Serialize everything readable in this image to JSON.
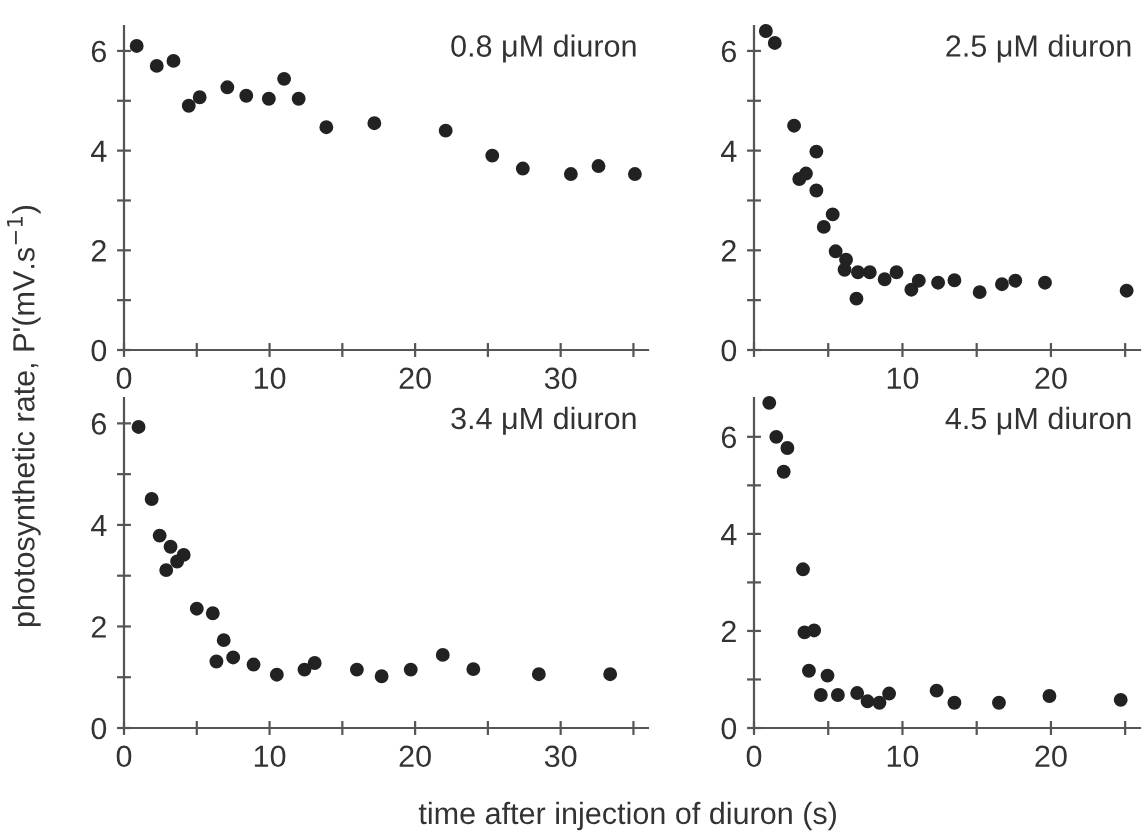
{
  "chart_data": [
    {
      "type": "scatter",
      "annotations": [
        "0.8 μM diuron"
      ],
      "ylabel": "photosynthetic rate, P'(mV.s$^{−1}$)",
      "marker": "circle",
      "grid": false,
      "x": [
        0.87,
        2.25,
        3.4,
        4.45,
        5.2,
        7.1,
        8.4,
        9.95,
        11.0,
        12.0,
        13.9,
        17.2,
        22.1,
        25.3,
        27.4,
        30.7,
        32.6,
        35.1
      ],
      "series": [
        {
          "color": "#222222",
          "values": [
            6.1,
            5.7,
            5.8,
            4.9,
            5.07,
            5.27,
            5.1,
            5.04,
            5.44,
            5.04,
            4.47,
            4.55,
            4.4,
            3.9,
            3.64,
            3.53,
            3.69,
            3.53
          ]
        }
      ],
      "xlim": [
        0,
        36
      ],
      "ylim": [
        0,
        6.5
      ],
      "xticks": [
        0,
        {
          "value": 5,
          "label": null
        },
        10,
        {
          "value": 15,
          "label": null
        },
        20,
        {
          "value": 25,
          "label": null
        },
        30,
        {
          "value": 35,
          "label": null
        }
      ],
      "yticks": [
        0,
        {
          "value": 1,
          "label": null
        },
        2,
        {
          "value": 3,
          "label": null
        },
        4,
        {
          "value": 5,
          "label": null
        },
        6
      ]
    },
    {
      "type": "scatter",
      "annotations": [
        "2.5 μM diuron"
      ],
      "marker": "circle",
      "grid": false,
      "x": [
        0.8,
        1.4,
        2.7,
        3.05,
        3.5,
        4.2,
        4.2,
        4.7,
        5.3,
        5.5,
        6.2,
        6.1,
        7.0,
        6.9,
        7.8,
        8.8,
        9.6,
        10.6,
        11.1,
        12.4,
        13.5,
        15.2,
        16.7,
        17.6,
        19.6,
        25.1
      ],
      "series": [
        {
          "color": "#222222",
          "values": [
            6.4,
            6.16,
            4.5,
            3.43,
            3.54,
            3.98,
            3.2,
            2.47,
            2.72,
            1.98,
            1.81,
            1.61,
            1.56,
            1.03,
            1.56,
            1.42,
            1.56,
            1.21,
            1.39,
            1.35,
            1.4,
            1.16,
            1.32,
            1.39,
            1.35,
            1.19
          ]
        }
      ],
      "xlim": [
        0,
        26
      ],
      "ylim": [
        0,
        6.5
      ],
      "xticks": [
        {
          "value": 0,
          "label": null
        },
        {
          "value": 5,
          "label": null
        },
        10,
        {
          "value": 15,
          "label": null
        },
        20,
        {
          "value": 25,
          "label": null
        }
      ],
      "yticks": [
        0,
        {
          "value": 1,
          "label": null
        },
        2,
        {
          "value": 3,
          "label": null
        },
        4,
        {
          "value": 5,
          "label": null
        },
        6
      ]
    },
    {
      "type": "scatter",
      "annotations": [
        "3.4 μM diuron"
      ],
      "xlabel": "time after injection of diuron (s)",
      "marker": "circle",
      "grid": false,
      "x": [
        1.0,
        1.9,
        2.45,
        2.9,
        3.2,
        3.65,
        4.1,
        5.0,
        6.1,
        6.35,
        6.85,
        7.5,
        8.9,
        10.5,
        12.4,
        13.1,
        16.0,
        17.7,
        19.7,
        21.9,
        24.0,
        28.5,
        33.4
      ],
      "series": [
        {
          "color": "#222222",
          "values": [
            5.93,
            4.51,
            3.79,
            3.11,
            3.57,
            3.28,
            3.41,
            2.35,
            2.26,
            1.31,
            1.73,
            1.39,
            1.25,
            1.05,
            1.15,
            1.28,
            1.15,
            1.02,
            1.15,
            1.44,
            1.16,
            1.06,
            1.06
          ]
        }
      ],
      "xlim": [
        0,
        36
      ],
      "ylim": [
        0,
        6.5
      ],
      "xticks": [
        0,
        {
          "value": 5,
          "label": null
        },
        10,
        {
          "value": 15,
          "label": null
        },
        20,
        {
          "value": 25,
          "label": null
        },
        30,
        {
          "value": 35,
          "label": null
        }
      ],
      "yticks": [
        0,
        {
          "value": 1,
          "label": null
        },
        2,
        {
          "value": 3,
          "label": null
        },
        4,
        {
          "value": 5,
          "label": null
        },
        6
      ]
    },
    {
      "type": "scatter",
      "annotations": [
        "4.5 μM diuron"
      ],
      "marker": "circle",
      "grid": false,
      "x": [
        1.03,
        1.5,
        2.25,
        2.0,
        3.3,
        3.4,
        4.05,
        3.7,
        4.95,
        4.5,
        5.65,
        6.95,
        7.65,
        8.45,
        9.1,
        12.3,
        13.5,
        16.5,
        19.9,
        24.7
      ],
      "series": [
        {
          "color": "#222222",
          "values": [
            6.7,
            6.0,
            5.77,
            5.28,
            3.27,
            1.97,
            2.01,
            1.18,
            1.08,
            0.68,
            0.68,
            0.72,
            0.55,
            0.52,
            0.71,
            0.77,
            0.52,
            0.52,
            0.66,
            0.58
          ]
        }
      ],
      "xlim": [
        0,
        26
      ],
      "ylim": [
        0,
        6.8
      ],
      "xticks": [
        0,
        {
          "value": 5,
          "label": null
        },
        10,
        {
          "value": 15,
          "label": null
        },
        20,
        {
          "value": 25,
          "label": null
        }
      ],
      "yticks": [
        0,
        {
          "value": 1,
          "label": null
        },
        2,
        {
          "value": 3,
          "label": null
        },
        4,
        {
          "value": 5,
          "label": null
        },
        6
      ]
    }
  ]
}
